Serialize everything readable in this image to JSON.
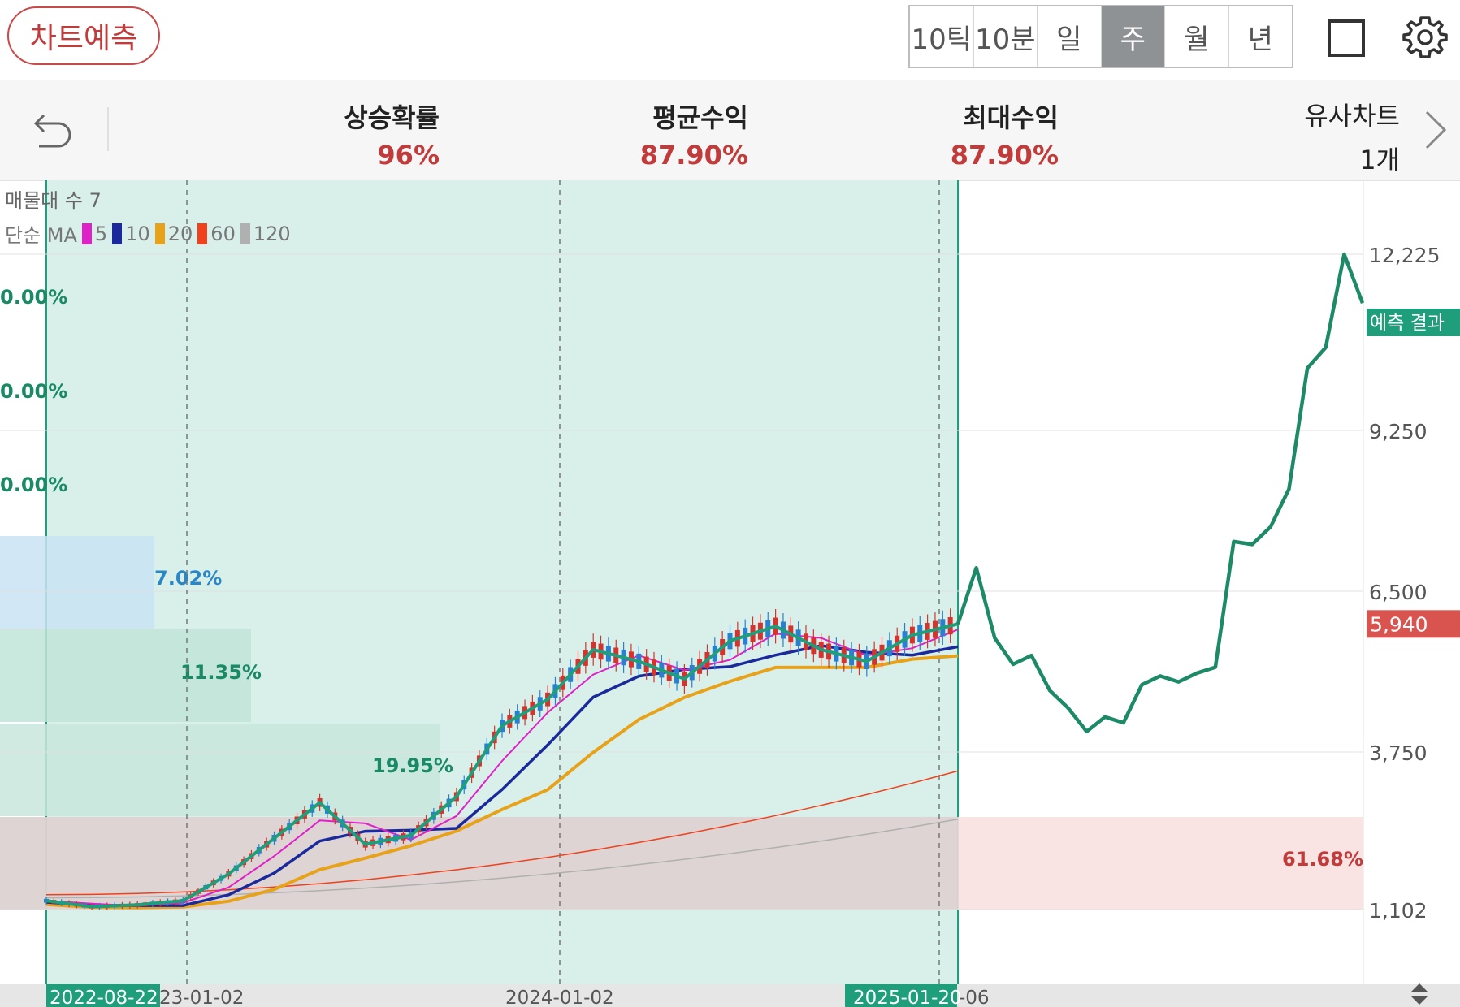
{
  "toolbar": {
    "predict_label": "차트예측",
    "periods": [
      {
        "label": "10틱",
        "active": false
      },
      {
        "label": "10분",
        "active": false
      },
      {
        "label": "일",
        "active": false
      },
      {
        "label": "주",
        "active": true
      },
      {
        "label": "월",
        "active": false
      },
      {
        "label": "년",
        "active": false
      }
    ],
    "icons": [
      "square-icon",
      "gear-icon"
    ]
  },
  "stats": {
    "rise_prob": {
      "label": "상승확률",
      "value": "96%"
    },
    "avg_return": {
      "label": "평균수익",
      "value": "87.90%"
    },
    "max_return": {
      "label": "최대수익",
      "value": "87.90%"
    },
    "similar": {
      "label": "유사차트",
      "count": "1개"
    },
    "icons": [
      "undo-icon",
      "chevron-right-icon"
    ]
  },
  "legend": {
    "volume_profile": "매물대 수 7",
    "ma_type": "단순 MA",
    "ma_items": [
      {
        "period": "5",
        "color": "#e020c8"
      },
      {
        "period": "10",
        "color": "#1a2a9c"
      },
      {
        "period": "20",
        "color": "#e8a21a"
      },
      {
        "period": "60",
        "color": "#f0401c"
      },
      {
        "period": "120",
        "color": "#b0b0b0"
      }
    ]
  },
  "price_axis": {
    "ticks": [
      "12,225",
      "9,250",
      "6,500",
      "3,750",
      "1,102"
    ],
    "prediction_tag": "예측 결과",
    "current_price": "5,940"
  },
  "volume_bands": {
    "labels": [
      "0.00%",
      "0.00%",
      "0.00%",
      "7.02%",
      "11.35%",
      "19.95%",
      "61.68%"
    ]
  },
  "date_axis": {
    "labels": [
      "2022-08-22",
      "23-01-02",
      "2024-01-02",
      "2025-01-20",
      "-06"
    ]
  },
  "colors": {
    "accent_red": "#c23b3b",
    "pattern_green": "#1f9e7c",
    "forecast_green": "#1c8a66",
    "highlight": "#d9f0ea",
    "period_active": "#8f9295"
  },
  "chart_data": {
    "type": "line",
    "series": [
      {
        "values": [
          1250,
          1150,
          1180,
          1250,
          1700,
          2300,
          2900,
          2200,
          2350,
          3000,
          4200,
          4650,
          5500,
          5300,
          5000,
          5650,
          5900,
          5500,
          5300,
          5750,
          5940
        ]
      },
      {
        "values": [
          5940,
          6900,
          5700,
          5250,
          5400,
          4800,
          4500,
          4100,
          4350,
          4250,
          4900,
          5050,
          4950,
          5100,
          5200,
          7350,
          7300,
          7600,
          8250,
          10300,
          10650,
          12225,
          11400
        ]
      }
    ],
    "ylim": [
      0,
      13500
    ],
    "yticks": [
      1102,
      3750,
      6500,
      9250,
      12225
    ],
    "volume_profile_percent": [
      0.0,
      0.0,
      0.0,
      7.02,
      11.35,
      19.95,
      61.68
    ],
    "current_price": 5940,
    "grid": true
  }
}
